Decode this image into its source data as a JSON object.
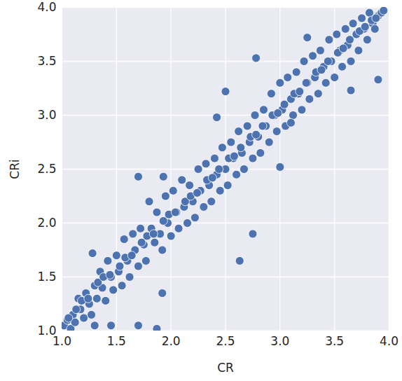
{
  "chart_data": {
    "type": "scatter",
    "xlabel": "CR",
    "ylabel": "CRi",
    "color": "#4c72b0",
    "marker": "circle",
    "grid": true,
    "xlim": [
      1.0,
      4.0
    ],
    "ylim": [
      1.0,
      4.0
    ],
    "xticks": [
      {
        "value": 1.0,
        "label": "1.0"
      },
      {
        "value": 1.5,
        "label": "1.5"
      },
      {
        "value": 2.0,
        "label": "2.0"
      },
      {
        "value": 2.5,
        "label": "2.5"
      },
      {
        "value": 3.0,
        "label": "3.0"
      },
      {
        "value": 3.5,
        "label": "3.5"
      },
      {
        "value": 4.0,
        "label": "4.0"
      }
    ],
    "yticks": [
      {
        "value": 1.0,
        "label": "1.0"
      },
      {
        "value": 1.5,
        "label": "1.5"
      },
      {
        "value": 2.0,
        "label": "2.0"
      },
      {
        "value": 2.5,
        "label": "2.5"
      },
      {
        "value": 3.0,
        "label": "3.0"
      },
      {
        "value": 3.5,
        "label": "3.5"
      },
      {
        "value": 4.0,
        "label": "4.0"
      }
    ],
    "x": [
      1.02,
      1.05,
      1.08,
      1.1,
      1.12,
      1.15,
      1.17,
      1.2,
      1.22,
      1.25,
      1.27,
      1.28,
      1.3,
      1.32,
      1.35,
      1.37,
      1.4,
      1.42,
      1.45,
      1.47,
      1.5,
      1.52,
      1.55,
      1.57,
      1.6,
      1.62,
      1.65,
      1.67,
      1.7,
      1.72,
      1.75,
      1.77,
      1.8,
      1.82,
      1.85,
      1.87,
      1.9,
      1.92,
      1.95,
      1.97,
      2.0,
      2.02,
      2.05,
      2.07,
      2.1,
      2.12,
      2.15,
      2.17,
      2.2,
      2.22,
      2.25,
      2.27,
      2.3,
      2.32,
      2.35,
      2.37,
      2.4,
      2.42,
      2.45,
      2.47,
      2.5,
      2.52,
      2.55,
      2.57,
      2.6,
      2.62,
      2.65,
      2.67,
      2.7,
      2.72,
      2.75,
      2.77,
      2.8,
      2.82,
      2.85,
      2.87,
      2.9,
      2.92,
      2.95,
      2.97,
      3.0,
      3.02,
      3.05,
      3.07,
      3.1,
      3.12,
      3.15,
      3.17,
      3.2,
      3.22,
      3.25,
      3.27,
      3.3,
      3.32,
      3.35,
      3.37,
      3.4,
      3.42,
      3.45,
      3.47,
      3.5,
      3.52,
      3.55,
      3.57,
      3.6,
      3.62,
      3.65,
      3.67,
      3.7,
      3.72,
      3.75,
      3.77,
      3.8,
      3.82,
      3.85,
      3.87,
      3.9,
      3.93,
      3.95,
      1.06,
      1.13,
      1.18,
      1.24,
      1.33,
      1.38,
      1.44,
      1.53,
      1.58,
      1.64,
      1.73,
      1.78,
      1.84,
      1.93,
      1.98,
      2.04,
      2.13,
      2.18,
      2.24,
      2.33,
      2.38,
      2.44,
      2.53,
      2.58,
      2.64,
      2.73,
      2.78,
      2.84,
      2.93,
      2.98,
      3.04,
      3.13,
      3.18,
      3.24,
      3.33,
      3.38,
      3.44,
      3.53,
      3.58,
      3.64,
      3.73,
      3.78,
      3.84,
      3.88,
      1.7,
      1.93,
      2.78,
      2.75,
      2.63,
      3.9,
      3.65,
      1.92,
      1.87,
      1.7,
      1.45,
      1.3,
      3.0,
      3.1,
      2.42,
      3.25,
      2.5
    ],
    "values": [
      1.05,
      1.1,
      1.02,
      1.15,
      1.08,
      1.3,
      1.2,
      1.12,
      1.35,
      1.25,
      1.15,
      1.72,
      1.42,
      1.3,
      1.55,
      1.4,
      1.28,
      1.65,
      1.5,
      1.38,
      1.7,
      1.55,
      1.42,
      1.85,
      1.65,
      1.5,
      1.9,
      1.75,
      1.6,
      1.95,
      1.8,
      1.65,
      2.2,
      1.95,
      1.82,
      2.1,
      1.9,
      1.75,
      2.25,
      2.0,
      1.88,
      2.3,
      2.1,
      1.95,
      2.4,
      2.15,
      2.0,
      2.35,
      2.2,
      2.05,
      2.5,
      2.3,
      2.15,
      2.55,
      2.35,
      2.2,
      2.6,
      2.45,
      2.3,
      2.7,
      2.5,
      2.35,
      2.75,
      2.6,
      2.45,
      2.85,
      2.65,
      2.5,
      2.9,
      2.75,
      2.6,
      3.0,
      2.8,
      2.65,
      3.05,
      2.9,
      2.75,
      3.2,
      3.0,
      2.85,
      3.3,
      3.05,
      2.9,
      3.35,
      3.15,
      3.0,
      3.4,
      3.2,
      3.05,
      3.5,
      3.3,
      3.15,
      3.55,
      3.35,
      3.2,
      3.6,
      3.45,
      3.3,
      3.7,
      3.5,
      3.35,
      3.75,
      3.6,
      3.45,
      3.8,
      3.65,
      3.5,
      3.85,
      3.75,
      3.6,
      3.9,
      3.8,
      3.7,
      3.95,
      3.85,
      3.8,
      3.92,
      3.95,
      3.97,
      1.12,
      1.2,
      1.28,
      1.3,
      1.45,
      1.5,
      1.52,
      1.6,
      1.68,
      1.7,
      1.82,
      1.88,
      1.9,
      2.02,
      2.08,
      2.1,
      2.2,
      2.25,
      2.28,
      2.4,
      2.42,
      2.5,
      2.6,
      2.62,
      2.7,
      2.8,
      2.82,
      2.9,
      3.0,
      3.02,
      3.1,
      3.2,
      3.22,
      3.3,
      3.4,
      3.42,
      3.5,
      3.58,
      3.62,
      3.7,
      3.78,
      3.82,
      3.88,
      3.9,
      2.43,
      2.43,
      3.53,
      1.9,
      1.65,
      3.33,
      3.23,
      1.35,
      1.02,
      1.05,
      1.05,
      1.05,
      2.52,
      2.93,
      2.98,
      3.72,
      3.22
    ]
  }
}
